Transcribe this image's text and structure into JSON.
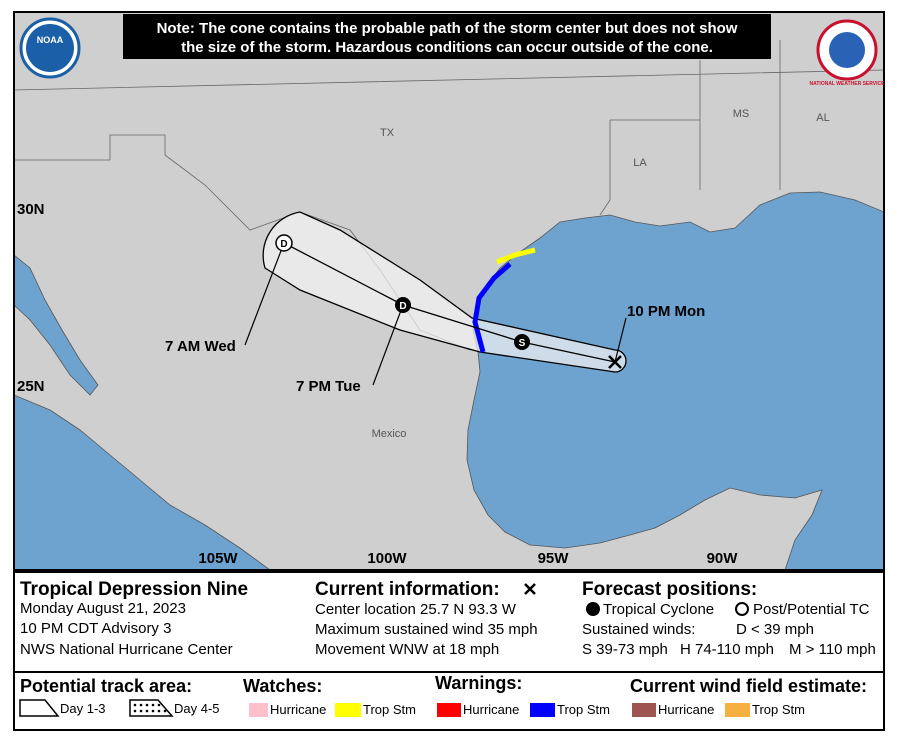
{
  "note": [
    "Note: The cone contains the probable path of the storm center but does not show",
    "the size of the storm. Hazardous conditions can occur outside of the cone."
  ],
  "logos": {
    "left": "NOAA",
    "right": "NATIONAL WEATHER SERVICE"
  },
  "map_labels": {
    "states": [
      "TX",
      "LA",
      "MS",
      "AL"
    ],
    "country": "Mexico",
    "latitudes": [
      "30N",
      "25N"
    ],
    "longitudes": [
      "105W",
      "100W",
      "95W",
      "90W"
    ]
  },
  "forecast_points": [
    {
      "time": "10 PM Mon"
    },
    {
      "symbol": "S"
    },
    {
      "time": "7 PM Tue",
      "symbol": "D"
    },
    {
      "time": "7 AM Wed",
      "symbol": "D"
    }
  ],
  "info": {
    "title": "Tropical Depression Nine",
    "date": "Monday August 21, 2023",
    "advisory": "10 PM CDT Advisory 3",
    "center": "NWS National Hurricane Center"
  },
  "current": {
    "heading": "Current information:",
    "lines": [
      "Center location 25.7 N 93.3 W",
      "Maximum sustained wind 35 mph",
      "Movement WNW at 18 mph"
    ]
  },
  "forecast_positions": {
    "heading": "Forecast positions:",
    "tropical_cyclone": "Tropical Cyclone",
    "post_tc": "Post/Potential TC",
    "sustained_winds": "Sustained winds:",
    "d": "D < 39 mph",
    "s": "S 39-73 mph",
    "h": "H 74-110 mph",
    "m": "M > 110 mph"
  },
  "legend": {
    "track_area": {
      "heading": "Potential track area:",
      "day13": "Day 1-3",
      "day45": "Day 4-5"
    },
    "watches": {
      "heading": "Watches:",
      "items": [
        "Hurricane",
        "Trop Stm"
      ]
    },
    "warnings": {
      "heading": "Warnings:",
      "items": [
        "Hurricane",
        "Trop Stm"
      ]
    },
    "wind_field": {
      "heading": "Current wind field estimate:",
      "items": [
        "Hurricane",
        "Trop Stm"
      ]
    }
  }
}
